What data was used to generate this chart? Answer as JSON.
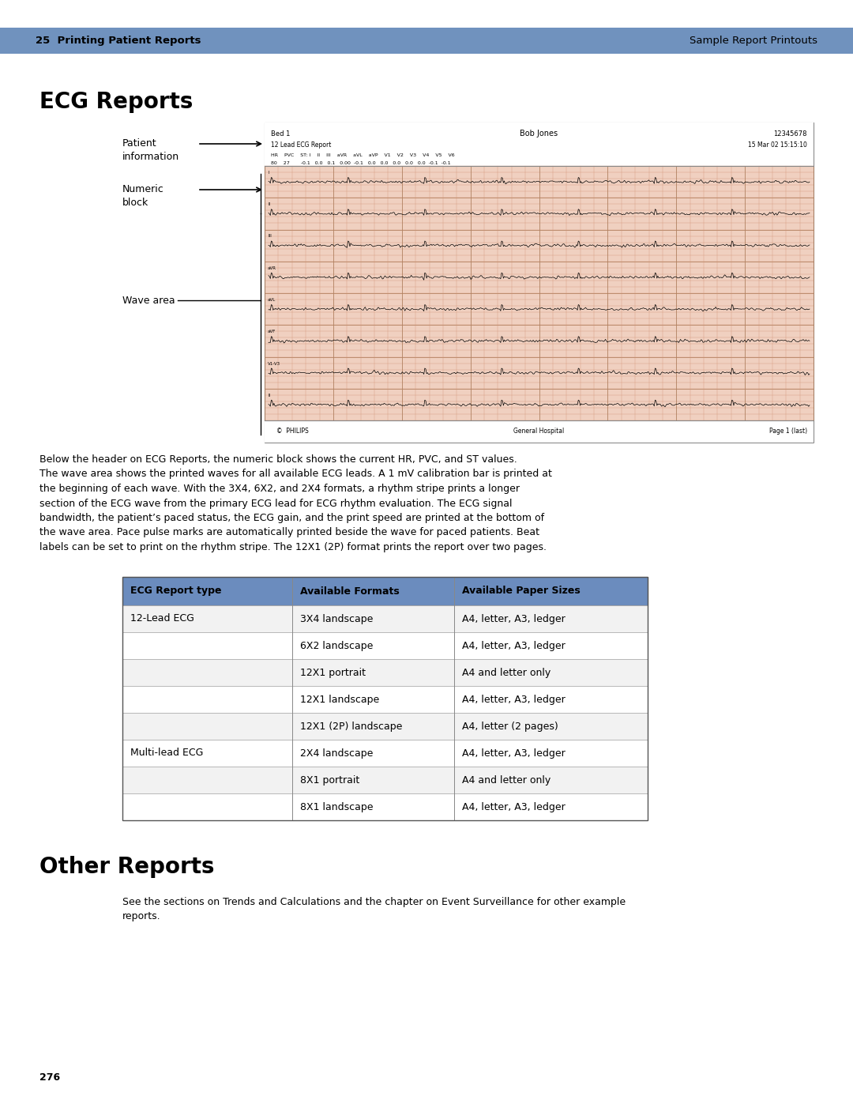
{
  "header_bg": "#7092be",
  "header_text_left": "25  Printing Patient Reports",
  "header_text_right": "Sample Report Printouts",
  "page_bg": "#ffffff",
  "section1_title": "ECG Reports",
  "body_text": "Below the header on ECG Reports, the numeric block shows the current HR, PVC, and ST values.\nThe wave area shows the printed waves for all available ECG leads. A 1 mV calibration bar is printed at\nthe beginning of each wave. With the 3X4, 6X2, and 2X4 formats, a rhythm stripe prints a longer\nsection of the ECG wave from the primary ECG lead for ECG rhythm evaluation. The ECG signal\nbandwidth, the patient’s paced status, the ECG gain, and the print speed are printed at the bottom of\nthe wave area. Pace pulse marks are automatically printed beside the wave for paced patients. Beat\nlabels can be set to print on the rhythm stripe. The 12X1 (2P) format prints the report over two pages.",
  "table_header_bg": "#6b8cbe",
  "table_col_headers": [
    "ECG Report type",
    "Available Formats",
    "Available Paper Sizes"
  ],
  "table_rows": [
    [
      "12-Lead ECG",
      "3X4 landscape",
      "A4, letter, A3, ledger"
    ],
    [
      "",
      "6X2 landscape",
      "A4, letter, A3, ledger"
    ],
    [
      "",
      "12X1 portrait",
      "A4 and letter only"
    ],
    [
      "",
      "12X1 landscape",
      "A4, letter, A3, ledger"
    ],
    [
      "",
      "12X1 (2P) landscape",
      "A4, letter (2 pages)"
    ],
    [
      "Multi-lead ECG",
      "2X4 landscape",
      "A4, letter, A3, ledger"
    ],
    [
      "",
      "8X1 portrait",
      "A4 and letter only"
    ],
    [
      "",
      "8X1 landscape",
      "A4, letter, A3, ledger"
    ]
  ],
  "section2_title": "Other Reports",
  "section2_text": "See the sections on Trends and Calculations and the chapter on Event Surveillance for other example\nreports.",
  "page_number": "276",
  "ecg_header_row1_left": "Bed 1",
  "ecg_header_row1_center": "Bob Jones",
  "ecg_header_row1_right": "12345678",
  "ecg_header_row2_left": "12 Lead ECG Report",
  "ecg_header_row2_right": "15 Mar 02 15:15:10",
  "ecg_numeric_left": "HR    PVC    ST: I    II    III    aVR    aVL    aVP    V1    V2    V3    V4    V5    V6",
  "ecg_numeric_left2": "80    27       -0.1   0.0   0.1   0.00  -0.1   0.0   0.0   0.0   0.0   0.0  -0.1  -0.1",
  "ecg_footer_left": "©  PHILIPS",
  "ecg_footer_center": "General Hospital",
  "ecg_footer_right": "Page 1 (last)"
}
